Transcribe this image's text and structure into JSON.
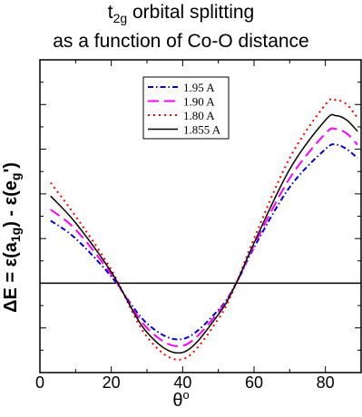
{
  "chart_data": {
    "type": "line",
    "title": {
      "line1_prefix": "t",
      "line1_sub": "2g",
      "line1_suffix": " orbital splitting",
      "line2": "as a function of Co-O distance"
    },
    "xlabel": {
      "main": "θ",
      "sup": "o"
    },
    "ylabel": {
      "part1": "ΔE = ε(a",
      "sub1": "1g",
      "part2": ") - ε(e",
      "sub2": "g",
      "part3": "')"
    },
    "xlim": [
      0,
      90
    ],
    "ylim": [
      -0.4,
      1.0
    ],
    "x_ticks": [
      0,
      20,
      40,
      60,
      80
    ],
    "x_ticklabels": [
      "0",
      "20",
      "40",
      "60",
      "80"
    ],
    "grid": false,
    "zero_line": true,
    "legend_position": "top-center",
    "series": [
      {
        "name": "1.95 A",
        "color": "#0000cc",
        "dash": "6,3,1.5,3",
        "x": [
          3,
          10,
          20,
          30,
          40,
          50,
          55,
          60,
          70,
          80,
          83,
          86,
          89
        ],
        "y": [
          0.28,
          0.2,
          0.03,
          -0.18,
          -0.25,
          -0.12,
          0.0,
          0.16,
          0.43,
          0.6,
          0.62,
          0.6,
          0.56
        ]
      },
      {
        "name": "1.90 A",
        "color": "#ff00ff",
        "dash": "12,6",
        "x": [
          3,
          10,
          20,
          30,
          40,
          50,
          55,
          60,
          70,
          80,
          83,
          86,
          89
        ],
        "y": [
          0.33,
          0.24,
          0.04,
          -0.2,
          -0.28,
          -0.13,
          0.0,
          0.17,
          0.47,
          0.67,
          0.69,
          0.67,
          0.62
        ]
      },
      {
        "name": "1.80 A",
        "color": "#ff0000",
        "dash": "2,4",
        "x": [
          3,
          10,
          20,
          30,
          40,
          50,
          55,
          60,
          70,
          80,
          83,
          86,
          89
        ],
        "y": [
          0.45,
          0.3,
          0.06,
          -0.24,
          -0.34,
          -0.16,
          0.0,
          0.2,
          0.56,
          0.8,
          0.82,
          0.8,
          0.74
        ]
      },
      {
        "name": "1.855 A",
        "color": "#000000",
        "dash": "",
        "x": [
          3,
          10,
          20,
          30,
          40,
          50,
          55,
          60,
          70,
          80,
          83,
          86,
          89
        ],
        "y": [
          0.39,
          0.27,
          0.05,
          -0.22,
          -0.31,
          -0.14,
          0.0,
          0.18,
          0.51,
          0.73,
          0.75,
          0.73,
          0.68
        ]
      }
    ]
  }
}
